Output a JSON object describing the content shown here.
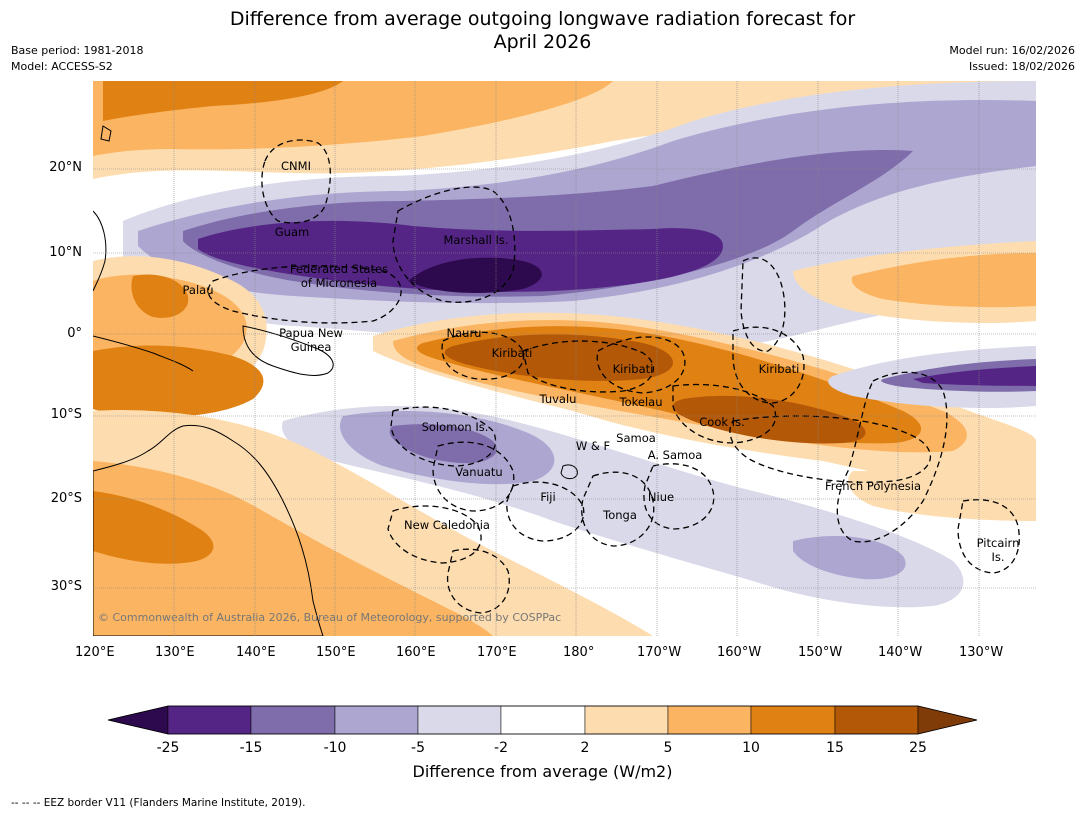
{
  "title_line1": "Difference from average outgoing longwave radiation forecast for",
  "title_line2": "April 2026",
  "meta_left": [
    "Base period: 1981-2018",
    "Model: ACCESS-S2"
  ],
  "meta_right": [
    "Model run: 16/02/2026",
    "Issued: 18/02/2026"
  ],
  "lat_ticks": [
    "20°N",
    "10°N",
    "0°",
    "10°S",
    "20°S",
    "30°S"
  ],
  "lon_ticks": [
    "120°E",
    "130°E",
    "140°E",
    "150°E",
    "160°E",
    "170°E",
    "180°",
    "170°W",
    "160°W",
    "150°W",
    "140°W",
    "130°W"
  ],
  "regions": [
    "CNMI",
    "Guam",
    "Marshall Is.",
    "Federated States",
    "of Micronesia",
    "Palau",
    "Papua New",
    "Guinea",
    "Nauru",
    "Kiribati",
    "Kiribati",
    "Kiribati",
    "Tuvalu",
    "Tokelau",
    "Cook Is.",
    "Solomon Is.",
    "W & F",
    "Samoa",
    "A. Samoa",
    "Vanuatu",
    "Fiji",
    "Niue",
    "French Polynesia",
    "New Caledonia",
    "Tonga",
    "Pitcairn",
    "Is."
  ],
  "copyright": "© Commonwealth of Australia 2026, Bureau of Meteorology, supported by COSPPac",
  "colorbar": {
    "ticks": [
      "-25",
      "-15",
      "-10",
      "-5",
      "-2",
      "2",
      "5",
      "10",
      "15",
      "25"
    ],
    "colors": [
      "#2d0a4d",
      "#552586",
      "#7e6daa",
      "#ada6d0",
      "#d9d9ea",
      "#ffffff",
      "#fdddb0",
      "#fbb562",
      "#e08113",
      "#b35807",
      "#7f3b08"
    ],
    "label": "Difference from average (W/m2)"
  },
  "footnote": "--  --  -- EEZ border V11 (Flanders Marine Institute, 2019)."
}
